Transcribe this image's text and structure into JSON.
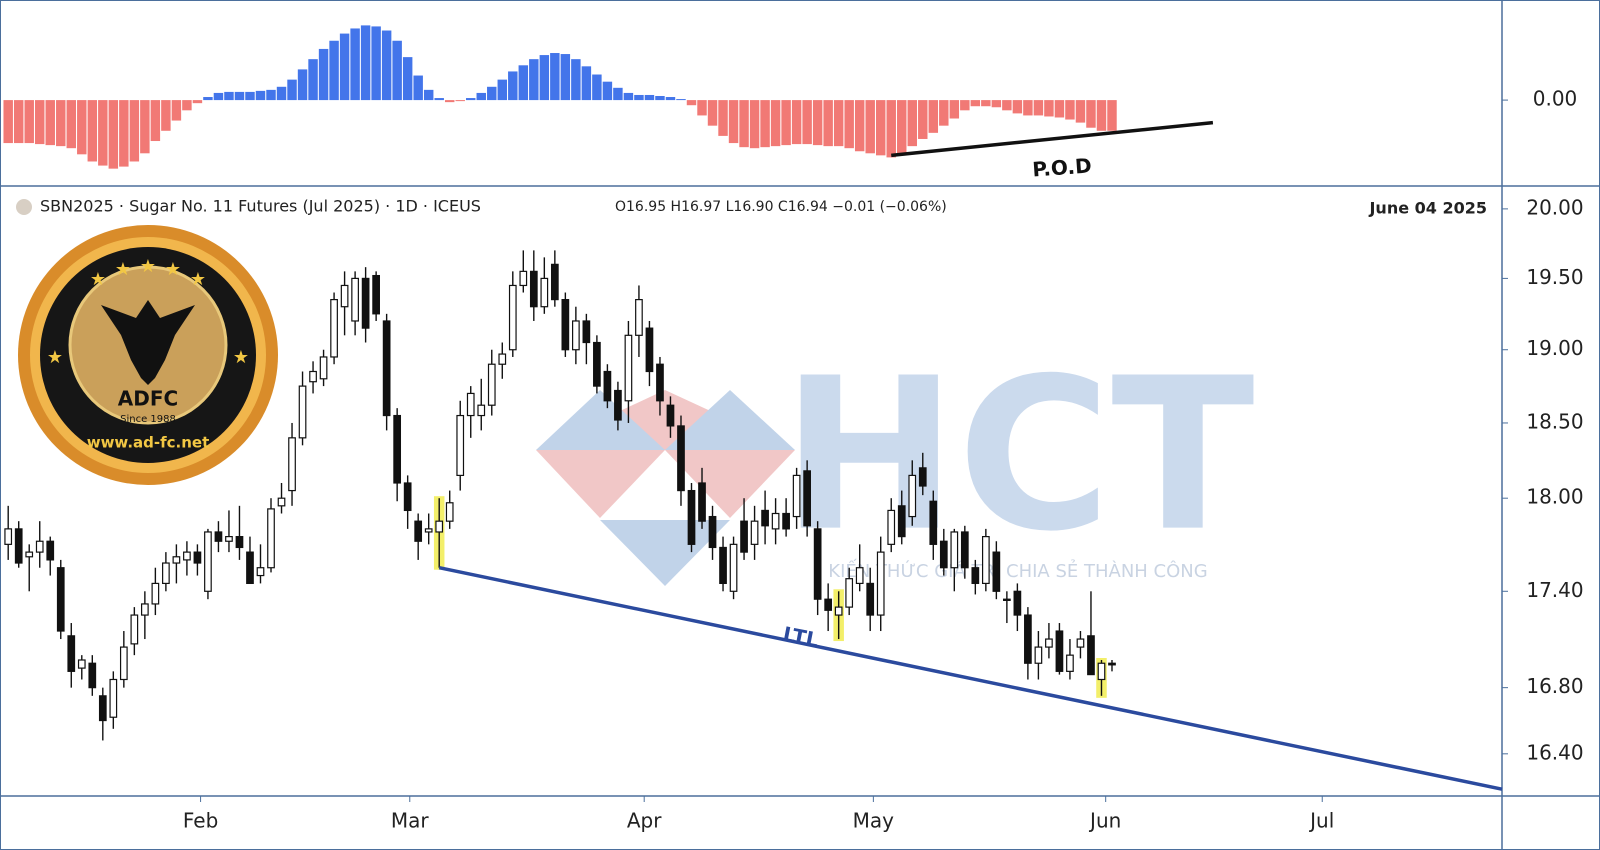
{
  "chart_data": [
    {
      "type": "bar",
      "values": [
        -0.42,
        -0.42,
        -0.42,
        -0.43,
        -0.44,
        -0.45,
        -0.47,
        -0.53,
        -0.6,
        -0.64,
        -0.67,
        -0.65,
        -0.6,
        -0.52,
        -0.4,
        -0.3,
        -0.2,
        -0.1,
        -0.03,
        0.03,
        0.07,
        0.08,
        0.08,
        0.08,
        0.09,
        0.1,
        0.13,
        0.2,
        0.3,
        0.4,
        0.5,
        0.58,
        0.65,
        0.7,
        0.73,
        0.72,
        0.68,
        0.58,
        0.42,
        0.24,
        0.1,
        0.02,
        -0.02,
        -0.01,
        0.02,
        0.07,
        0.13,
        0.2,
        0.28,
        0.34,
        0.4,
        0.44,
        0.46,
        0.45,
        0.4,
        0.33,
        0.25,
        0.18,
        0.12,
        0.07,
        0.05,
        0.05,
        0.04,
        0.03,
        0.01,
        -0.05,
        -0.15,
        -0.25,
        -0.35,
        -0.42,
        -0.46,
        -0.47,
        -0.46,
        -0.45,
        -0.44,
        -0.43,
        -0.43,
        -0.44,
        -0.45,
        -0.45,
        -0.47,
        -0.5,
        -0.52,
        -0.54,
        -0.56,
        -0.52,
        -0.45,
        -0.38,
        -0.32,
        -0.25,
        -0.18,
        -0.1,
        -0.06,
        -0.06,
        -0.07,
        -0.1,
        -0.13,
        -0.15,
        -0.15,
        -0.16,
        -0.17,
        -0.19,
        -0.22,
        -0.27,
        -0.3,
        -0.3
      ],
      "positive_color": "#2f66e8",
      "negative_color": "#f06a66",
      "xlim": [
        -0.78,
        142.1
      ],
      "ylim": [
        -0.82,
        0.9
      ],
      "yticks": [
        {
          "value": 0,
          "label": "0.00"
        }
      ],
      "trendline": {
        "label": "P.O.D",
        "color": "#111111",
        "x": [
          84,
          114.6
        ],
        "y": [
          -0.54,
          -0.22
        ]
      }
    },
    {
      "type": "candlestick",
      "title": "SBN2025 · Sugar No. 11 Futures (Jul 2025) · 1D · ICEUS",
      "ohlc_label": "O16.95  H16.97  L16.90  C16.94  −0.01 (−0.06%)",
      "date_label": "June 04 2025",
      "open": [
        17.7,
        17.8,
        17.62,
        17.65,
        17.72,
        17.55,
        17.12,
        16.92,
        16.95,
        16.75,
        16.62,
        16.85,
        17.07,
        17.25,
        17.32,
        17.45,
        17.58,
        17.6,
        17.65,
        17.4,
        17.78,
        17.72,
        17.75,
        17.65,
        17.5,
        17.55,
        17.95,
        18.05,
        18.4,
        18.78,
        18.8,
        18.95,
        19.3,
        19.2,
        19.5,
        19.52,
        19.2,
        18.55,
        18.1,
        17.85,
        17.78,
        17.78,
        17.85,
        18.15,
        18.55,
        18.55,
        18.62,
        18.9,
        19.0,
        19.45,
        19.55,
        19.3,
        19.6,
        19.35,
        19.0,
        19.2,
        19.05,
        18.85,
        18.72,
        18.65,
        19.1,
        19.15,
        18.9,
        18.62,
        18.48,
        18.05,
        18.1,
        17.88,
        17.68,
        17.4,
        17.85,
        17.7,
        17.92,
        17.8,
        17.9,
        17.88,
        18.18,
        17.8,
        17.35,
        17.25,
        17.3,
        17.45,
        17.45,
        17.25,
        17.7,
        17.95,
        17.88,
        18.2,
        17.98,
        17.72,
        17.55,
        17.78,
        17.55,
        17.45,
        17.65,
        17.35,
        17.4,
        17.25,
        16.95,
        17.05,
        17.15,
        16.9,
        17.05,
        17.12,
        16.85,
        16.95
      ],
      "high": [
        17.95,
        17.85,
        17.7,
        17.85,
        17.75,
        17.6,
        17.2,
        17.0,
        17.0,
        16.8,
        16.9,
        17.15,
        17.3,
        17.4,
        17.55,
        17.65,
        17.7,
        17.72,
        17.7,
        17.8,
        17.85,
        17.92,
        17.95,
        17.75,
        17.7,
        18.0,
        18.1,
        18.5,
        18.85,
        18.92,
        19.0,
        19.4,
        19.55,
        19.55,
        19.58,
        19.55,
        19.25,
        18.6,
        18.15,
        17.9,
        17.9,
        18.0,
        18.05,
        18.65,
        18.75,
        18.8,
        19.0,
        19.05,
        19.55,
        19.7,
        19.7,
        19.65,
        19.7,
        19.4,
        19.3,
        19.25,
        19.1,
        18.9,
        18.78,
        19.2,
        19.45,
        19.2,
        18.95,
        18.68,
        18.55,
        18.1,
        18.2,
        17.95,
        17.75,
        17.75,
        18.0,
        17.95,
        18.05,
        18.0,
        18.0,
        18.2,
        18.25,
        17.85,
        17.45,
        17.4,
        17.55,
        17.7,
        17.55,
        17.75,
        18.0,
        18.05,
        18.25,
        18.3,
        18.05,
        17.8,
        17.8,
        17.82,
        17.6,
        17.8,
        17.72,
        17.4,
        17.45,
        17.3,
        17.15,
        17.2,
        17.2,
        17.1,
        17.15,
        17.4,
        16.97,
        16.97
      ],
      "low": [
        17.6,
        17.55,
        17.4,
        17.55,
        17.5,
        17.1,
        16.8,
        16.85,
        16.75,
        16.48,
        16.55,
        16.8,
        17.0,
        17.1,
        17.25,
        17.4,
        17.45,
        17.5,
        17.5,
        17.35,
        17.65,
        17.65,
        17.6,
        17.45,
        17.45,
        17.52,
        17.9,
        17.95,
        18.35,
        18.7,
        18.75,
        18.9,
        19.1,
        19.1,
        19.05,
        19.2,
        18.45,
        17.98,
        17.8,
        17.6,
        17.7,
        17.55,
        17.8,
        18.05,
        18.4,
        18.45,
        18.55,
        18.8,
        18.95,
        19.4,
        19.2,
        19.25,
        19.3,
        18.95,
        18.9,
        18.9,
        18.7,
        18.6,
        18.45,
        18.5,
        18.95,
        18.75,
        18.55,
        18.4,
        17.95,
        17.65,
        17.8,
        17.6,
        17.4,
        17.35,
        17.6,
        17.6,
        17.7,
        17.7,
        17.75,
        17.8,
        17.75,
        17.25,
        17.15,
        17.1,
        17.25,
        17.4,
        17.15,
        17.15,
        17.65,
        17.7,
        17.82,
        18.02,
        17.6,
        17.5,
        17.4,
        17.48,
        17.38,
        17.4,
        17.35,
        17.2,
        17.15,
        16.85,
        16.85,
        16.98,
        16.88,
        16.85,
        16.98,
        16.88,
        16.75,
        16.9
      ],
      "close": [
        17.8,
        17.58,
        17.65,
        17.72,
        17.6,
        17.15,
        16.9,
        16.97,
        16.8,
        16.6,
        16.85,
        17.05,
        17.25,
        17.32,
        17.45,
        17.58,
        17.62,
        17.65,
        17.58,
        17.78,
        17.72,
        17.75,
        17.68,
        17.45,
        17.55,
        17.93,
        18.0,
        18.4,
        18.75,
        18.85,
        18.95,
        19.35,
        19.45,
        19.5,
        19.15,
        19.25,
        18.55,
        18.1,
        17.92,
        17.72,
        17.8,
        17.85,
        17.97,
        18.55,
        18.7,
        18.62,
        18.9,
        18.97,
        19.45,
        19.55,
        19.3,
        19.5,
        19.35,
        19.0,
        19.2,
        19.05,
        18.75,
        18.65,
        18.52,
        19.1,
        19.35,
        18.85,
        18.65,
        18.48,
        18.05,
        17.7,
        17.85,
        17.68,
        17.45,
        17.7,
        17.65,
        17.85,
        17.82,
        17.9,
        17.8,
        18.15,
        17.82,
        17.35,
        17.28,
        17.3,
        17.48,
        17.55,
        17.25,
        17.65,
        17.92,
        17.75,
        18.15,
        18.08,
        17.7,
        17.55,
        17.78,
        17.55,
        17.45,
        17.75,
        17.4,
        17.35,
        17.25,
        16.95,
        17.05,
        17.1,
        16.9,
        17.0,
        17.1,
        16.88,
        16.95,
        16.94
      ],
      "up_color": "#ffffff",
      "down_color": "#111111",
      "highlighted": [
        41,
        79,
        104
      ],
      "highlight_color": "#f3ef6a",
      "log_scale": true,
      "xlim": [
        -0.78,
        142.1
      ],
      "ylim": [
        16.15,
        20.16
      ],
      "xticks": [
        {
          "value": 18.3,
          "label": "Feb"
        },
        {
          "value": 38.2,
          "label": "Mar"
        },
        {
          "value": 60.5,
          "label": "Apr"
        },
        {
          "value": 82.3,
          "label": "May"
        },
        {
          "value": 104.4,
          "label": "Jun"
        },
        {
          "value": 125.0,
          "label": "Jul"
        }
      ],
      "yticks": [
        {
          "value": 20,
          "label": "20.00"
        },
        {
          "value": 19.5,
          "label": "19.50"
        },
        {
          "value": 19,
          "label": "19.00"
        },
        {
          "value": 18.5,
          "label": "18.50"
        },
        {
          "value": 18,
          "label": "18.00"
        },
        {
          "value": 17.4,
          "label": "17.40"
        },
        {
          "value": 16.8,
          "label": "16.80"
        },
        {
          "value": 16.4,
          "label": "16.40"
        }
      ],
      "trendline": {
        "label": "LTL",
        "color": "#2b4a9e",
        "x": [
          41,
          142.1
        ],
        "y": [
          17.55,
          16.19
        ]
      }
    }
  ],
  "watermarks": {
    "badge_name": "ADFC",
    "badge_since": "Since 1988",
    "badge_site": "www.ad-fc.net",
    "logo": "HCT",
    "slogan": "KIẾN THỨC GIÁ TRỊ CHIA SẺ THÀNH CÔNG"
  }
}
